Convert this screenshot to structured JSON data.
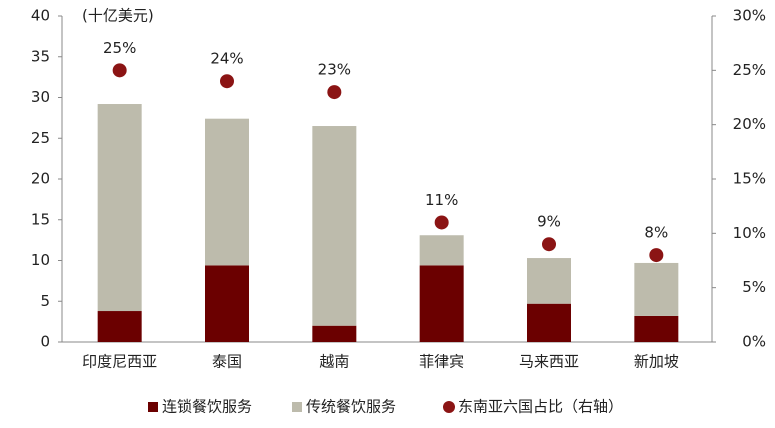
{
  "chart_data": {
    "type": "bar",
    "stacked": true,
    "y_label": "(十亿美元)",
    "categories": [
      "印度尼西亚",
      "泰国",
      "越南",
      "菲律宾",
      "马来西亚",
      "新加坡"
    ],
    "series": [
      {
        "name": "连锁餐饮服务",
        "color": "#6b0000",
        "values": [
          3.8,
          9.4,
          2.0,
          9.4,
          4.7,
          3.2
        ]
      },
      {
        "name": "传统餐饮服务",
        "color": "#bdbbac",
        "values": [
          25.4,
          18.0,
          24.5,
          3.7,
          5.6,
          6.5
        ]
      },
      {
        "name": "东南亚六国占比（右轴）",
        "color": "#8b1414",
        "axis": "y2",
        "values": [
          25,
          24,
          23,
          11,
          9,
          8
        ],
        "value_labels": [
          "25%",
          "24%",
          "23%",
          "11%",
          "9%",
          "8%"
        ]
      }
    ],
    "ylim": [
      0,
      40
    ],
    "yticks": [
      0,
      5,
      10,
      15,
      20,
      25,
      30,
      35,
      40
    ],
    "y2lim": [
      0,
      30
    ],
    "y2ticks": [
      {
        "value": 0,
        "label": "0%"
      },
      {
        "value": 5,
        "label": "5%"
      },
      {
        "value": 10,
        "label": "10%"
      },
      {
        "value": 15,
        "label": "15%"
      },
      {
        "value": 20,
        "label": "20%"
      },
      {
        "value": 25,
        "label": "25%"
      },
      {
        "value": 30,
        "label": "30%"
      }
    ],
    "grid": false
  }
}
